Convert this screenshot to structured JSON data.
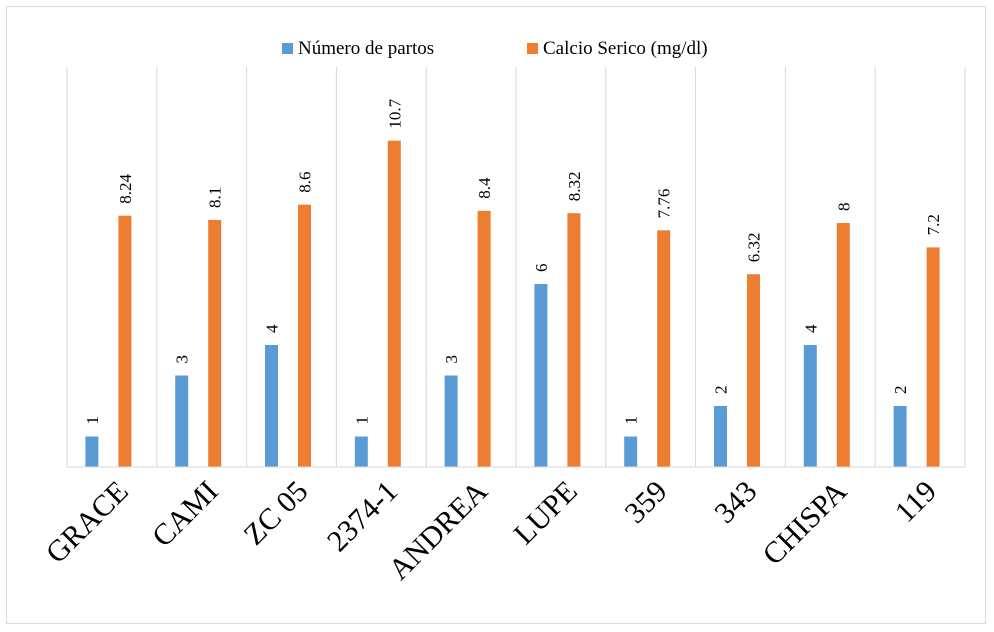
{
  "chart_data": {
    "type": "bar",
    "categories": [
      "GRACE",
      "CAMI",
      "ZC 05",
      "2374-1",
      "ANDREA",
      "LUPE",
      "359",
      "343",
      "CHISPA",
      "119"
    ],
    "series": [
      {
        "name": "Número de partos",
        "values": [
          1,
          3,
          4,
          1,
          3,
          6,
          1,
          2,
          4,
          2
        ],
        "labels": [
          "1",
          "3",
          "4",
          "1",
          "3",
          "6",
          "1",
          "2",
          "4",
          "2"
        ],
        "color": "#5B9BD5"
      },
      {
        "name": "Calcio Serico (mg/dl)",
        "values": [
          8.24,
          8.1,
          8.6,
          10.7,
          8.4,
          8.32,
          7.76,
          6.32,
          8,
          7.2
        ],
        "labels": [
          "8.24",
          "8.1",
          "8.6",
          "10.7",
          "8.4",
          "8.32",
          "7.76",
          "6.32",
          "8",
          "7.2"
        ],
        "color": "#ED7D31"
      }
    ],
    "title": "",
    "xlabel": "",
    "ylabel": "",
    "ylim": [
      0,
      12
    ],
    "grid": "vertical-category-separators",
    "legend": "top",
    "separator_color": "#d9d9d9",
    "axis_color": "#d9d9d9"
  }
}
